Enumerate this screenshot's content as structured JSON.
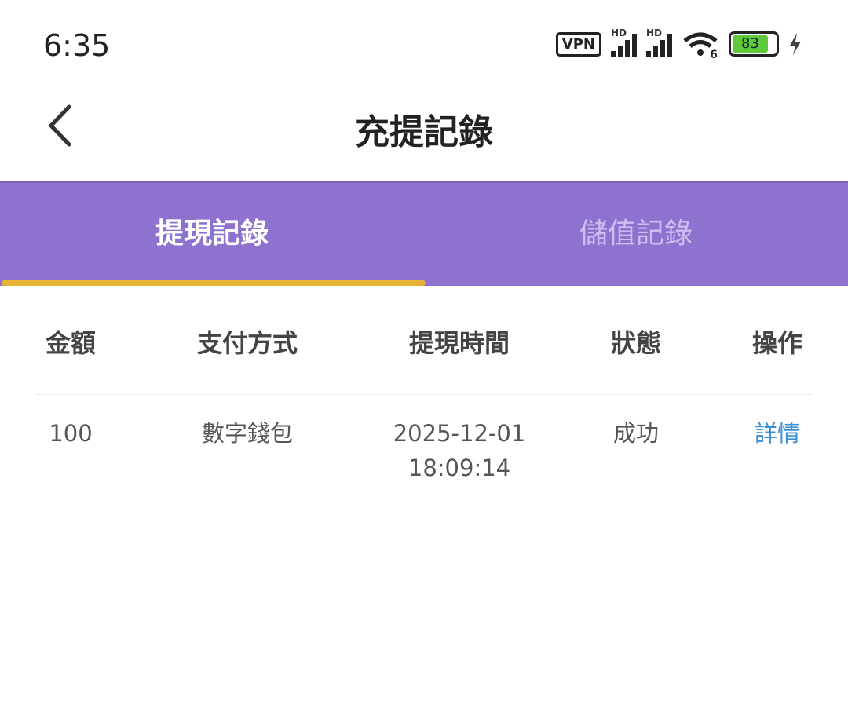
{
  "status_bar": {
    "time": "6:35",
    "vpn": "VPN",
    "signal_label": "HD",
    "battery": "83",
    "icons": [
      "vpn-icon",
      "signal-icon",
      "signal-icon",
      "wifi-6-icon",
      "battery-icon",
      "charging-icon"
    ]
  },
  "header": {
    "title": "充提記錄",
    "back_icon": "chevron-left-icon"
  },
  "tabs": [
    {
      "label": "提現記錄",
      "active": true
    },
    {
      "label": "儲值記錄",
      "active": false
    }
  ],
  "colors": {
    "tab_bg": "#8e72cf",
    "indicator": "#e6b335",
    "link": "#3a8fd6"
  },
  "table": {
    "columns": [
      "金額",
      "支付方式",
      "提現時間",
      "狀態",
      "操作"
    ],
    "rows": [
      {
        "amount": "100",
        "method": "數字錢包",
        "date": "2025-12-01",
        "time": "18:09:14",
        "status": "成功",
        "action": "詳情"
      }
    ]
  }
}
